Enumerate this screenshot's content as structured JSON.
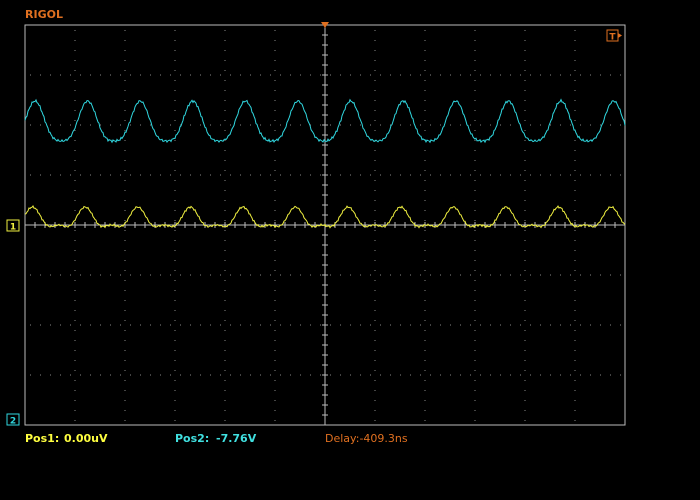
{
  "header": {
    "brand": "RIGOL"
  },
  "markers": {
    "trigger": "T",
    "channel1": "1",
    "channel2": "2"
  },
  "status": {
    "pos1_label": "Pos1:",
    "pos1_value": "0.00uV",
    "pos2_label": "Pos2:",
    "pos2_value": "-7.76V",
    "delay": "Delay:-409.3ns"
  }
}
